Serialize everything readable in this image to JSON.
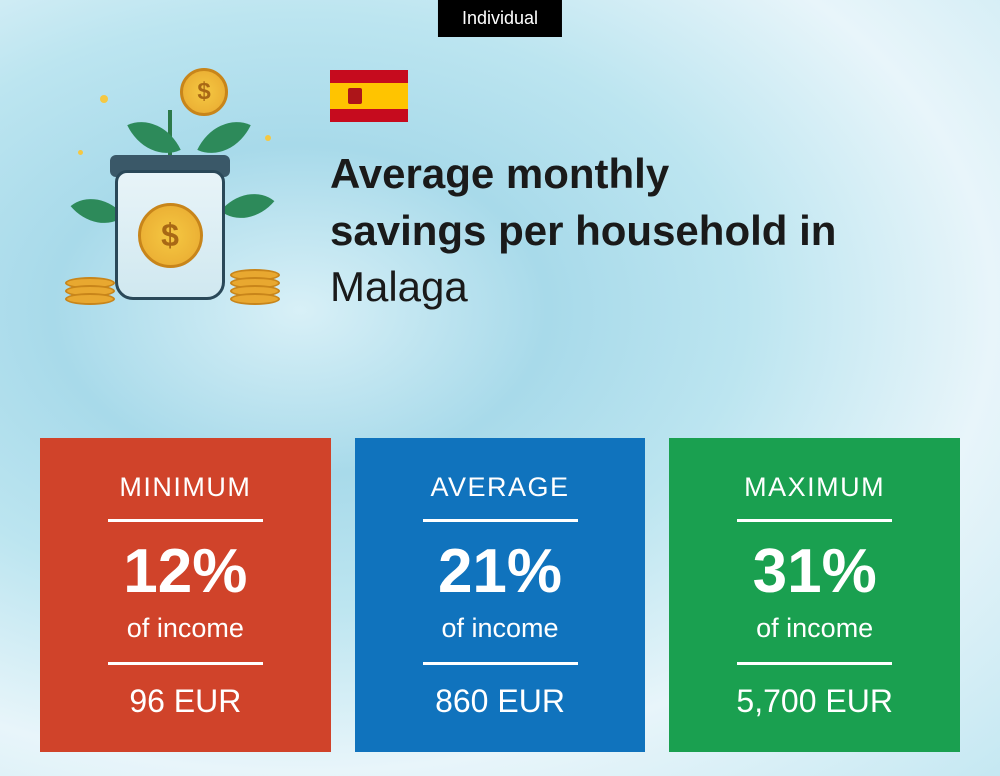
{
  "badge": "Individual",
  "title_line1": "Average monthly",
  "title_line2": "savings per household in",
  "city": "Malaga",
  "flag": {
    "top_color": "#c60b1e",
    "mid_color": "#ffc400",
    "bottom_color": "#c60b1e"
  },
  "illustration": {
    "jar_color": "#d0e8f0",
    "leaf_color": "#2d8a5a",
    "coin_color": "#e8a830",
    "currency_symbol": "$"
  },
  "cards": [
    {
      "label": "MINIMUM",
      "percent": "12%",
      "subtext": "of income",
      "amount": "96 EUR",
      "background_color": "#d0432a"
    },
    {
      "label": "AVERAGE",
      "percent": "21%",
      "subtext": "of income",
      "amount": "860 EUR",
      "background_color": "#1073bd"
    },
    {
      "label": "MAXIMUM",
      "percent": "31%",
      "subtext": "of income",
      "amount": "5,700 EUR",
      "background_color": "#1aa050"
    }
  ],
  "styling": {
    "title_fontsize": 42,
    "card_label_fontsize": 27,
    "percent_fontsize": 62,
    "amount_fontsize": 32,
    "text_color": "#ffffff",
    "divider_color": "#ffffff",
    "background_gradient": [
      "#d8f0f7",
      "#a8daea",
      "#bce5f0",
      "#e8f5fa"
    ]
  }
}
